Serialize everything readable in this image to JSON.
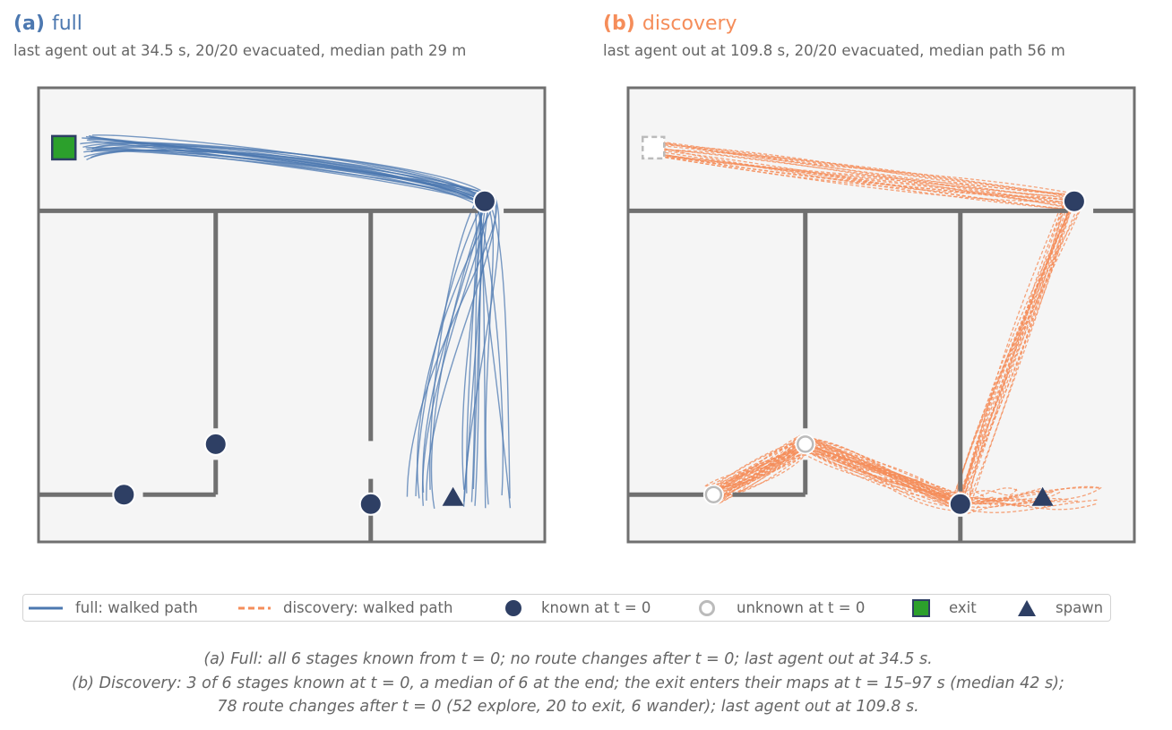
{
  "colors": {
    "full": "#4c78b0",
    "discovery": "#f58d5a",
    "known": "#2e3f64",
    "unknown": "#bbbbbb",
    "exit": "#2ca02c",
    "wall": "#707070",
    "floor": "#f5f5f5"
  },
  "panels": [
    {
      "tag": "(a)",
      "name": "full",
      "subtitle": "last agent out at 34.5 s, 20/20 evacuated, median path 29 m"
    },
    {
      "tag": "(b)",
      "name": "discovery",
      "subtitle": "last agent out at 109.8 s, 20/20 evacuated, median path 56 m"
    }
  ],
  "legend": {
    "full_path": "full: walked path",
    "discovery_path": "discovery: walked path",
    "known": "known at t = 0",
    "unknown": "unknown at t = 0",
    "exit": "exit",
    "spawn": "spawn"
  },
  "captions": {
    "a": "(a) Full: all 6 stages known from t = 0; no route changes after t = 0; last agent out at 34.5 s.",
    "b1": "(b) Discovery: 3 of 6 stages known at t = 0, a median of 6 at the end; the exit enters their maps at t = 15–97 s (median 42 s);",
    "b2": "78 route changes after t = 0 (52 explore, 20 to exit, 6 wander); last agent out at 109.8 s."
  },
  "chart_data": [
    {
      "type": "line",
      "panel": "full",
      "xlim": [
        0,
        16
      ],
      "ylim": [
        0,
        14.4
      ],
      "agents": 20,
      "walls": [
        [
          [
            0,
            10.5
          ],
          [
            13.9,
            10.5
          ]
        ],
        [
          [
            14.7,
            10.5
          ],
          [
            16,
            10.5
          ]
        ],
        [
          [
            5.6,
            10.5
          ],
          [
            5.6,
            3.6
          ]
        ],
        [
          [
            10.5,
            10.5
          ],
          [
            10.5,
            3.2
          ]
        ],
        [
          [
            10.5,
            2.0
          ],
          [
            10.5,
            0
          ]
        ],
        [
          [
            0,
            1.5
          ],
          [
            2.5,
            1.5
          ]
        ],
        [
          [
            3.3,
            1.5
          ],
          [
            5.6,
            1.5
          ]
        ],
        [
          [
            5.6,
            1.5
          ],
          [
            5.6,
            2.6
          ]
        ]
      ],
      "stages": [
        {
          "x": 14.1,
          "y": 10.8,
          "known": true
        },
        {
          "x": 5.6,
          "y": 3.1,
          "known": true
        },
        {
          "x": 2.7,
          "y": 1.5,
          "known": true
        },
        {
          "x": 10.5,
          "y": 1.2,
          "known": true
        }
      ],
      "exit": {
        "x": 0.8,
        "y": 12.5,
        "known": true
      },
      "spawn": {
        "x": 13.1,
        "y": 1.4
      },
      "route": [
        [
          13.1,
          1.4
        ],
        [
          14.1,
          10.8
        ],
        [
          0.8,
          12.5
        ]
      ]
    },
    {
      "type": "line",
      "panel": "discovery",
      "xlim": [
        0,
        16
      ],
      "ylim": [
        0,
        14.4
      ],
      "agents": 20,
      "walls": [
        [
          [
            0,
            10.5
          ],
          [
            13.9,
            10.5
          ]
        ],
        [
          [
            14.7,
            10.5
          ],
          [
            16,
            10.5
          ]
        ],
        [
          [
            5.6,
            10.5
          ],
          [
            5.6,
            3.6
          ]
        ],
        [
          [
            10.5,
            10.5
          ],
          [
            10.5,
            1.6
          ]
        ],
        [
          [
            10.5,
            0.8
          ],
          [
            10.5,
            0
          ]
        ],
        [
          [
            0,
            1.5
          ],
          [
            2.5,
            1.5
          ]
        ],
        [
          [
            3.3,
            1.5
          ],
          [
            5.6,
            1.5
          ]
        ],
        [
          [
            5.6,
            1.5
          ],
          [
            5.6,
            2.6
          ]
        ]
      ],
      "stages": [
        {
          "x": 14.1,
          "y": 10.8,
          "known": true
        },
        {
          "x": 5.6,
          "y": 3.1,
          "known": false
        },
        {
          "x": 2.7,
          "y": 1.5,
          "known": false
        },
        {
          "x": 10.5,
          "y": 1.2,
          "known": true
        }
      ],
      "exit": {
        "x": 0.8,
        "y": 12.5,
        "known": false
      },
      "spawn": {
        "x": 13.1,
        "y": 1.4
      },
      "route": [
        [
          13.1,
          1.4
        ],
        [
          10.5,
          1.2
        ],
        [
          5.6,
          3.1
        ],
        [
          2.7,
          1.5
        ],
        [
          5.6,
          3.1
        ],
        [
          10.5,
          1.2
        ],
        [
          14.1,
          10.8
        ],
        [
          0.8,
          12.5
        ]
      ]
    }
  ]
}
